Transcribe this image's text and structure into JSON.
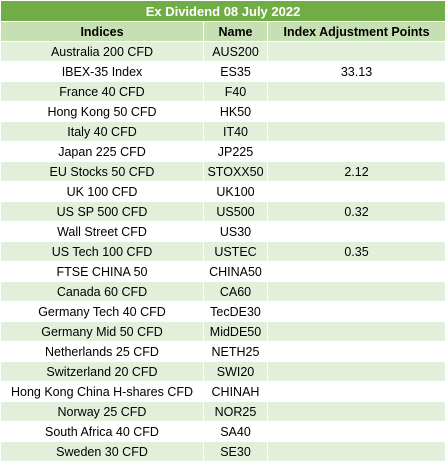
{
  "title": "Ex Dividend 08 July 2022",
  "headers": [
    "Indices",
    "Name",
    "Index Adjustment Points"
  ],
  "rows": [
    {
      "index": "Australia 200 CFD",
      "name": "AUS200",
      "points": ""
    },
    {
      "index": "IBEX-35 Index",
      "name": "ES35",
      "points": "33.13"
    },
    {
      "index": "France 40 CFD",
      "name": "F40",
      "points": ""
    },
    {
      "index": "Hong Kong 50 CFD",
      "name": "HK50",
      "points": ""
    },
    {
      "index": "Italy 40 CFD",
      "name": "IT40",
      "points": ""
    },
    {
      "index": "Japan 225 CFD",
      "name": "JP225",
      "points": ""
    },
    {
      "index": "EU Stocks 50 CFD",
      "name": "STOXX50",
      "points": "2.12"
    },
    {
      "index": "UK 100 CFD",
      "name": "UK100",
      "points": ""
    },
    {
      "index": "US SP 500 CFD",
      "name": "US500",
      "points": "0.32"
    },
    {
      "index": "Wall Street CFD",
      "name": "US30",
      "points": ""
    },
    {
      "index": "US Tech 100 CFD",
      "name": "USTEC",
      "points": "0.35"
    },
    {
      "index": "FTSE CHINA 50",
      "name": "CHINA50",
      "points": ""
    },
    {
      "index": "Canada 60 CFD",
      "name": "CA60",
      "points": ""
    },
    {
      "index": "Germany Tech 40 CFD",
      "name": "TecDE30",
      "points": ""
    },
    {
      "index": "Germany Mid 50 CFD",
      "name": "MidDE50",
      "points": ""
    },
    {
      "index": "Netherlands 25 CFD",
      "name": "NETH25",
      "points": ""
    },
    {
      "index": "Switzerland 20 CFD",
      "name": "SWI20",
      "points": ""
    },
    {
      "index": "Hong Kong China H-shares CFD",
      "name": "CHINAH",
      "points": ""
    },
    {
      "index": "Norway 25 CFD",
      "name": "NOR25",
      "points": ""
    },
    {
      "index": "South Africa 40 CFD",
      "name": "SA40",
      "points": ""
    },
    {
      "index": "Sweden 30 CFD",
      "name": "SE30",
      "points": ""
    }
  ],
  "colors": {
    "title_bg": "#70ad47",
    "header_bg": "#c6e0b4",
    "band_bg": "#e2efda",
    "plain_bg": "#ffffff"
  }
}
